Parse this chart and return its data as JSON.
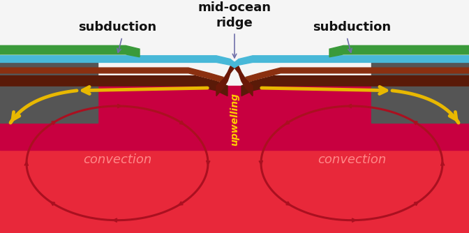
{
  "fig_width": 6.72,
  "fig_height": 3.34,
  "dpi": 100,
  "bg_color": "#f5f5f5",
  "mantle_deep_color": "#e8283a",
  "mantle_upper_color": "#c80040",
  "litho_dark_color": "#5a1a08",
  "litho_mid_color": "#7a2810",
  "ocean_color": "#48b8d8",
  "land_left_color": "#3a9a3a",
  "land_right_color": "#3a9a3a",
  "ridge_color": "#6a1808",
  "convection_circle_color": "#aa1020",
  "yellow_arrow_color": "#e8b800",
  "label_black": "#111111",
  "label_convection": "#ff8888",
  "label_upwelling": "#ffcc00",
  "text_subduction_left": "subduction",
  "text_subduction_right": "subduction",
  "text_ridge": "mid-ocean\nridge",
  "text_convection_left": "convection",
  "text_convection_right": "convection",
  "text_upwelling": "upwelling"
}
